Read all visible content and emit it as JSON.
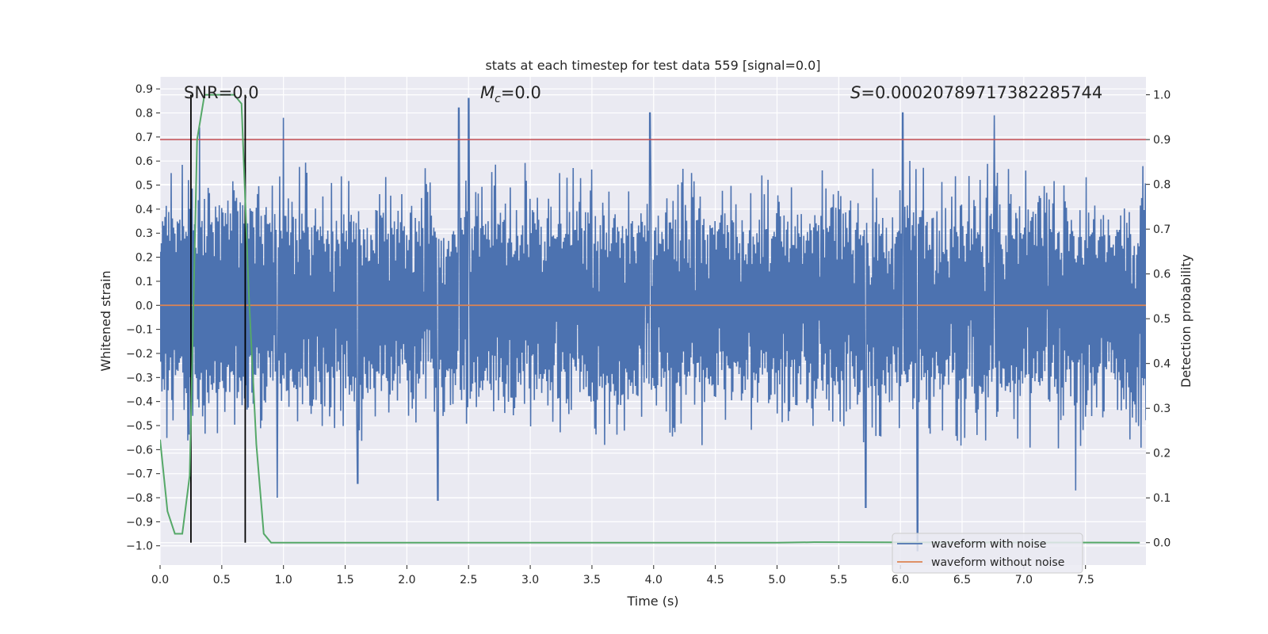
{
  "chart_data": {
    "type": "line",
    "title": "stats at each timestep for test data 559 [signal=0.0]",
    "xlabel": "Time (s)",
    "ylabel_left": "Whitened strain",
    "ylabel_right": "Detection probability",
    "xlim": [
      0.0,
      7.99
    ],
    "ylim_left": [
      -1.08,
      0.95
    ],
    "ylim_right": [
      -0.05,
      1.04
    ],
    "x_ticks": [
      "0.0",
      "0.5",
      "1.0",
      "1.5",
      "2.0",
      "2.5",
      "3.0",
      "3.5",
      "4.0",
      "4.5",
      "5.0",
      "5.5",
      "6.0",
      "6.5",
      "7.0",
      "7.5"
    ],
    "y_left_ticks": [
      "0.9",
      "0.8",
      "0.7",
      "0.6",
      "0.5",
      "0.4",
      "0.3",
      "0.2",
      "0.1",
      "0.0",
      "-0.1",
      "-0.2",
      "-0.3",
      "-0.4",
      "-0.5",
      "-0.6",
      "-0.7",
      "-0.8",
      "-0.9",
      "-1.0"
    ],
    "y_right_ticks": [
      "1.0",
      "0.9",
      "0.8",
      "0.7",
      "0.6",
      "0.5",
      "0.4",
      "0.3",
      "0.2",
      "0.1",
      "0.0"
    ],
    "grid": true,
    "annotations": {
      "snr": "SNR=0.0",
      "mc_symbol": "M",
      "mc_sub": "c",
      "mc_value": "=0.0",
      "s_symbol": "S",
      "s_value": "=0.00020789717382285744"
    },
    "threshold_probability": 0.9,
    "vertical_markers_s": [
      0.25,
      0.69
    ],
    "series": [
      {
        "name": "waveform with noise",
        "color": "#4c72b0",
        "axis": "left",
        "description": "whitened noisy strain, approx. band -0.45..0.45 with spikes to about +0.86 and -1.02",
        "samples": 1600,
        "seed": 559
      },
      {
        "name": "waveform without noise",
        "color": "#dd8452",
        "axis": "left",
        "x": [
          0.0,
          7.99
        ],
        "y": [
          0.0,
          0.0
        ]
      },
      {
        "name": "detection probability",
        "color": "#55a868",
        "axis": "right",
        "x": [
          0.0,
          0.06,
          0.12,
          0.18,
          0.24,
          0.3,
          0.36,
          0.42,
          0.48,
          0.54,
          0.6,
          0.66,
          0.72,
          0.78,
          0.84,
          0.9,
          1.5,
          3.0,
          5.0,
          5.3,
          7.94
        ],
        "y": [
          0.23,
          0.07,
          0.02,
          0.02,
          0.15,
          0.9,
          1.0,
          1.0,
          1.0,
          1.0,
          1.0,
          0.98,
          0.55,
          0.22,
          0.02,
          0.0,
          0.0,
          0.0,
          0.0,
          0.001,
          0.0
        ]
      }
    ],
    "legend": {
      "position": "lower right",
      "entries": [
        "waveform with noise",
        "waveform without noise"
      ]
    },
    "colors": {
      "background": "#eaeaf2",
      "grid": "#ffffff",
      "threshold": "#c44e52",
      "marker": "#000000"
    }
  }
}
